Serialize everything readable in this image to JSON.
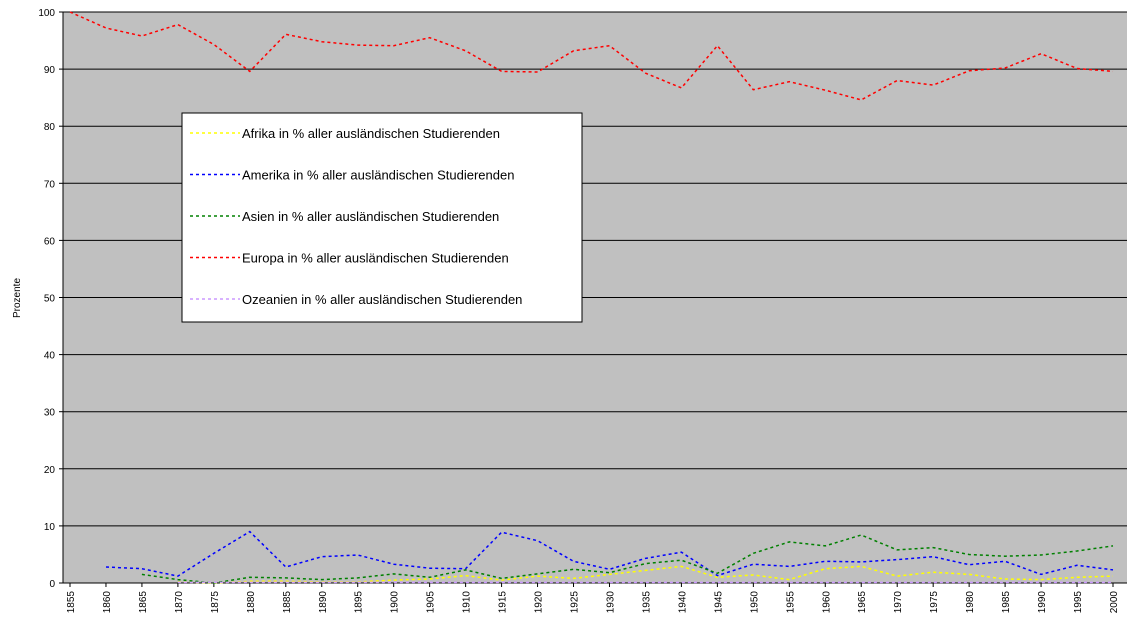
{
  "chart_data": {
    "type": "line",
    "y_label": "Prozente",
    "categories": [
      "1855",
      "1860",
      "1865",
      "1870",
      "1875",
      "1880",
      "1885",
      "1890",
      "1895",
      "1900",
      "1905",
      "1910",
      "1915",
      "1920",
      "1925",
      "1930",
      "1935",
      "1940",
      "1945",
      "1950",
      "1955",
      "1960",
      "1965",
      "1970",
      "1975",
      "1980",
      "1985",
      "1990",
      "1995",
      "2000"
    ],
    "series": [
      {
        "name": "Afrika in % aller ausländischen Studierenden",
        "color": "#ffff00",
        "values": [
          null,
          null,
          null,
          0.2,
          0.0,
          0.3,
          0.3,
          0.2,
          0.2,
          0.5,
          0.7,
          1.3,
          0.5,
          1.2,
          0.8,
          1.5,
          2.2,
          2.9,
          1.0,
          1.4,
          0.6,
          2.5,
          2.9,
          1.2,
          1.9,
          1.5,
          0.7,
          0.6,
          1.0,
          1.2
        ]
      },
      {
        "name": "Amerika in % aller ausländischen Studierenden",
        "color": "#0000ff",
        "values": [
          null,
          2.8,
          2.5,
          1.2,
          5.2,
          9.0,
          2.8,
          4.6,
          4.9,
          3.3,
          2.6,
          2.5,
          8.9,
          7.4,
          3.8,
          2.4,
          4.3,
          5.4,
          1.3,
          3.3,
          2.9,
          3.8,
          3.7,
          4.1,
          4.6,
          3.2,
          3.8,
          1.5,
          3.1,
          2.3
        ]
      },
      {
        "name": "Asien in % aller ausländischen Studierenden",
        "color": "#008000",
        "values": [
          null,
          null,
          1.5,
          0.6,
          0.0,
          1.0,
          0.9,
          0.6,
          0.9,
          1.6,
          1.0,
          2.3,
          0.8,
          1.6,
          2.4,
          1.8,
          3.4,
          4.0,
          1.7,
          5.2,
          7.2,
          6.5,
          8.4,
          5.8,
          6.2,
          5.0,
          4.7,
          4.9,
          5.6,
          6.5
        ]
      },
      {
        "name": "Europa in % aller ausländischen Studierenden",
        "color": "#ff0000",
        "values": [
          100,
          97.2,
          95.8,
          97.8,
          94.3,
          89.6,
          96.1,
          94.8,
          94.2,
          94.1,
          95.5,
          93.2,
          89.6,
          89.5,
          93.2,
          94.1,
          89.3,
          86.7,
          94.1,
          86.4,
          87.8,
          86.3,
          84.6,
          88.0,
          87.2,
          89.7,
          90.2,
          92.7,
          90.1,
          89.6
        ]
      },
      {
        "name": "Ozeanien in % aller ausländischen Studierenden",
        "color": "#cc99ff",
        "values": [
          null,
          null,
          null,
          0.1,
          0.1,
          0.1,
          0.1,
          0.1,
          0.1,
          0.1,
          0.1,
          0.1,
          0.1,
          0.1,
          0.1,
          0.1,
          0.1,
          0.1,
          0.1,
          0.1,
          0.1,
          0.1,
          0.1,
          0.1,
          0.1,
          0.1,
          0.1,
          0.1,
          0.1,
          0.1
        ]
      }
    ],
    "ylim": [
      0,
      100
    ],
    "yticks": [
      0,
      10,
      20,
      30,
      40,
      50,
      60,
      70,
      80,
      90,
      100
    ],
    "grid": true,
    "background": "#c0c0c0"
  }
}
